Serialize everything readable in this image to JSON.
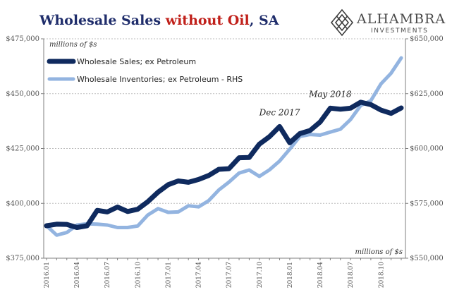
{
  "title": {
    "main": "Wholesale Sales ",
    "highlight": "without Oil",
    "suffix": ", SA"
  },
  "logo": {
    "name": "ALHAMBRA",
    "sub": "INVESTMENTS"
  },
  "colors": {
    "sales": "#0f2a5e",
    "inventories": "#93b4e0",
    "title": "#1f2d6b",
    "title_highlight": "#c0201a",
    "grid": "#bdbdbd",
    "axis": "#7f7f7f"
  },
  "chart_data": {
    "type": "line",
    "grid": true,
    "legend_position": "top-left",
    "x": [
      "2016.01",
      "2016.02",
      "2016.03",
      "2016.04",
      "2016.05",
      "2016.06",
      "2016.07",
      "2016.08",
      "2016.09",
      "2016.10",
      "2016.11",
      "2016.12",
      "2017.01",
      "2017.02",
      "2017.03",
      "2017.04",
      "2017.05",
      "2017.06",
      "2017.07",
      "2017.08",
      "2017.09",
      "2017.10",
      "2017.11",
      "2017.12",
      "2018.01",
      "2018.02",
      "2018.03",
      "2018.04",
      "2018.05",
      "2018.06",
      "2018.07",
      "2018.08",
      "2018.09",
      "2018.10",
      "2018.11",
      "2018.12"
    ],
    "x_tick_labels": [
      "2016.01",
      "2016.04",
      "2016.07",
      "2016.10",
      "2017.01",
      "2017.04",
      "2017.07",
      "2017.10",
      "2018.01",
      "2018.04",
      "2018.07",
      "2018.10"
    ],
    "y_left": {
      "unit_label": "millions of $s",
      "ylim": [
        375000,
        475000
      ],
      "ticks": [
        "$375,000",
        "$400,000",
        "$425,000",
        "$450,000",
        "$475,000"
      ]
    },
    "y_right": {
      "unit_label": "millions of $s",
      "ylim": [
        550000,
        650000
      ],
      "ticks": [
        "$550,000",
        "$575,000",
        "$600,000",
        "$625,000",
        "$650,000"
      ]
    },
    "series": [
      {
        "name": "Wholesale Sales; ex Petroleum",
        "axis": "left",
        "values": [
          389800,
          390500,
          390400,
          389000,
          389800,
          396800,
          396100,
          398300,
          396300,
          397300,
          400800,
          405100,
          408500,
          410200,
          409600,
          410900,
          412700,
          415500,
          415800,
          420800,
          420900,
          427000,
          430400,
          435000,
          427600,
          431800,
          433200,
          437100,
          443400,
          442900,
          443400,
          446100,
          445000,
          442500,
          441000,
          443500
        ]
      },
      {
        "name": "Wholesale Inventories; ex Petroleum - RHS",
        "axis": "right",
        "values": [
          564800,
          560500,
          561700,
          565100,
          565700,
          565500,
          565100,
          564000,
          564000,
          564700,
          569700,
          572600,
          570900,
          571100,
          573900,
          573400,
          576200,
          581100,
          584700,
          588800,
          590200,
          587300,
          590300,
          594300,
          599700,
          605500,
          606400,
          606100,
          607500,
          608800,
          613200,
          619600,
          621800,
          629500,
          634300,
          641300
        ]
      }
    ],
    "annotations": [
      {
        "text": "Dec 2017",
        "x": "2017.12"
      },
      {
        "text": "May 2018",
        "x": "2018.05"
      }
    ]
  }
}
